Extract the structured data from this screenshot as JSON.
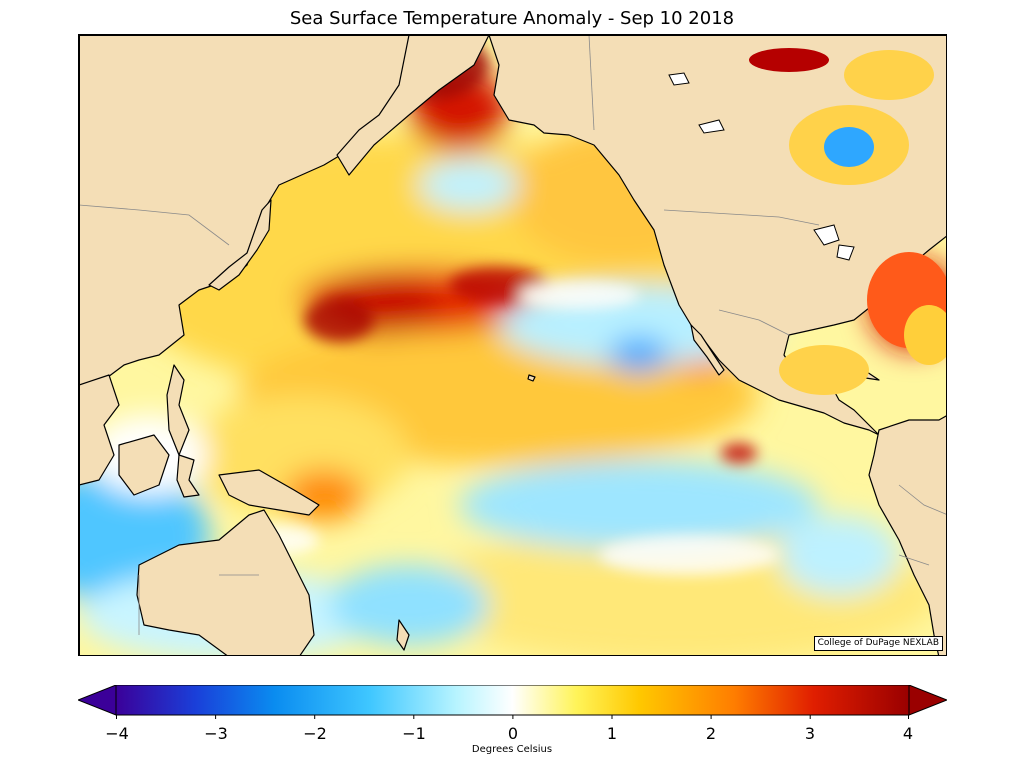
{
  "title": "Sea Surface Temperature Anomaly - Sep 10 2018",
  "credit": "College of DuPage NEXLAB",
  "colorbar": {
    "label": "Degrees Celsius",
    "min": -4,
    "max": 4,
    "ticks": [
      "−4",
      "−3",
      "−2",
      "−1",
      "0",
      "1",
      "2",
      "3",
      "4"
    ],
    "extend": "both",
    "stops": [
      "#3b0099",
      "#1a3fd9",
      "#0a8cf0",
      "#3fc7ff",
      "#b8f4ff",
      "#ffffff",
      "#fff45a",
      "#ffc800",
      "#ff7d00",
      "#e01e00",
      "#9a0000"
    ]
  },
  "colors": {
    "land": "#f4deb6",
    "coastline": "#000000",
    "borders": "#888888"
  }
}
